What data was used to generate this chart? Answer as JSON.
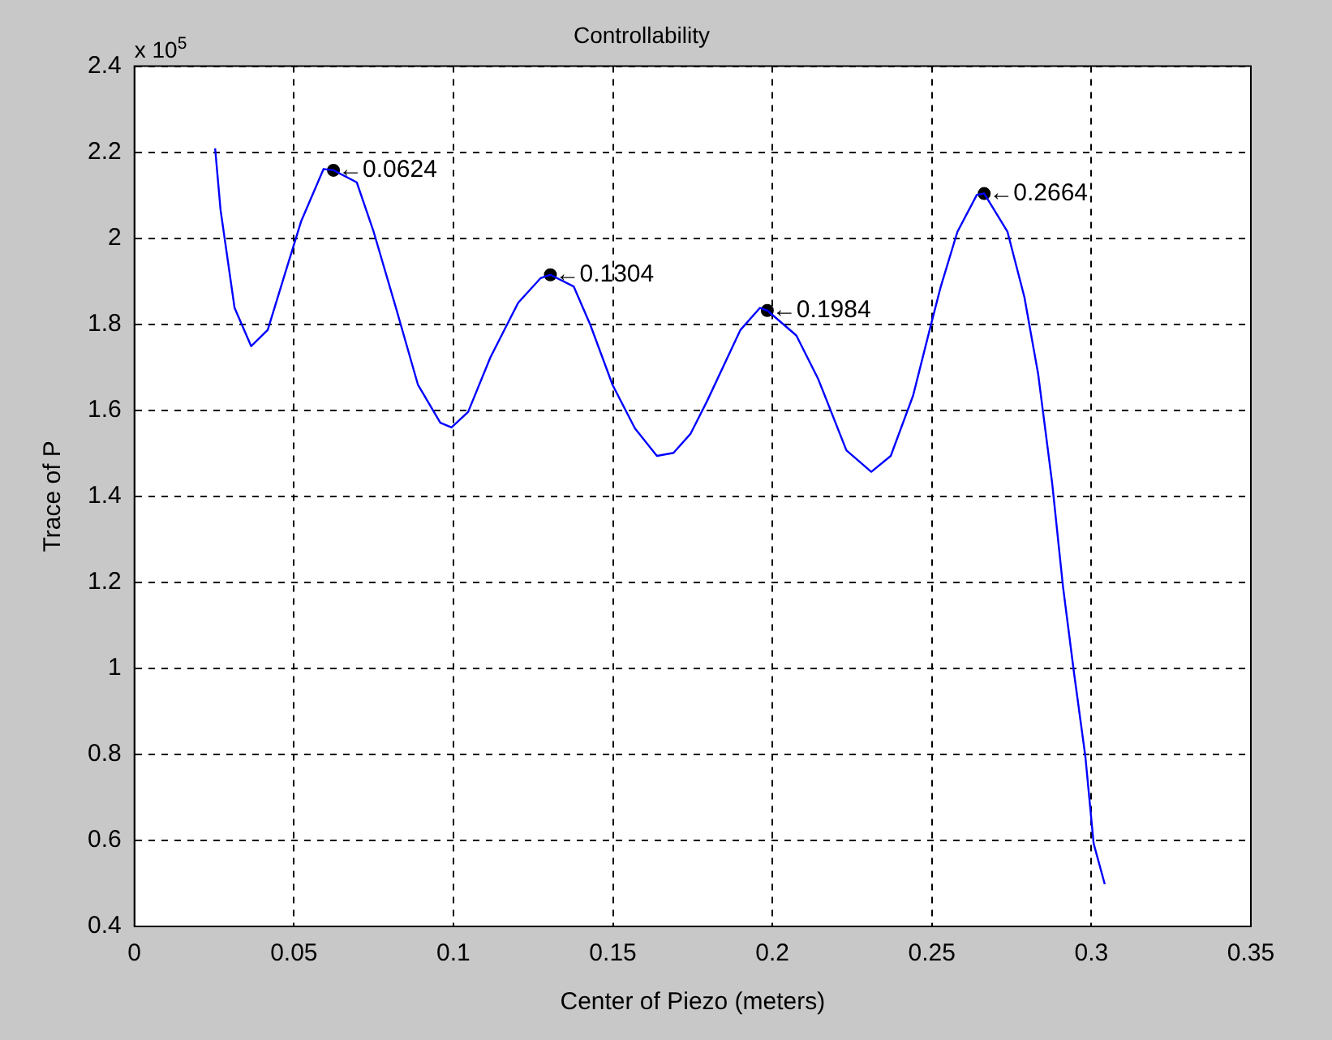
{
  "chart_data": {
    "type": "line",
    "title": "Controllability",
    "xlabel": "Center of Piezo (meters)",
    "ylabel": "Trace of P",
    "annotations": [
      "x 10$^{5}$",
      {
        "text": "←0.0624",
        "x": 0.0624,
        "y": 2.158
      },
      {
        "text": "←0.1304",
        "x": 0.1304,
        "y": 1.915
      },
      {
        "text": "←0.1984",
        "x": 0.1984,
        "y": 1.832
      },
      {
        "text": "←0.2664",
        "x": 0.2664,
        "y": 2.104
      }
    ],
    "series": [
      {
        "color": "#0000ff",
        "x": [
          0.0253,
          0.027,
          0.0314,
          0.0366,
          0.0418,
          0.047,
          0.0523,
          0.0593,
          0.0624,
          0.0697,
          0.075,
          0.082,
          0.0889,
          0.0959,
          0.0994,
          0.1046,
          0.1116,
          0.1203,
          0.1273,
          0.1304,
          0.1377,
          0.1429,
          0.1499,
          0.1569,
          0.1638,
          0.169,
          0.1743,
          0.1795,
          0.19,
          0.1961,
          0.1984,
          0.2075,
          0.2144,
          0.2232,
          0.231,
          0.2371,
          0.2441,
          0.2493,
          0.2528,
          0.258,
          0.2641,
          0.2664,
          0.2737,
          0.279,
          0.2833,
          0.2877,
          0.2911,
          0.2946,
          0.2981,
          0.3007,
          0.3042
        ],
        "values": [
          2.209,
          2.066,
          1.838,
          1.749,
          1.787,
          1.913,
          2.04,
          2.161,
          2.158,
          2.13,
          2.015,
          1.838,
          1.659,
          1.571,
          1.56,
          1.596,
          1.723,
          1.85,
          1.907,
          1.915,
          1.888,
          1.799,
          1.659,
          1.558,
          1.494,
          1.501,
          1.545,
          1.621,
          1.787,
          1.838,
          1.832,
          1.774,
          1.672,
          1.507,
          1.457,
          1.494,
          1.634,
          1.787,
          1.888,
          2.015,
          2.101,
          2.104,
          2.015,
          1.863,
          1.685,
          1.431,
          1.19,
          0.987,
          0.796,
          0.593,
          0.498
        ]
      },
      {
        "type": "scatter",
        "color": "#000000",
        "marker": "circle",
        "x": [
          0.0624,
          0.1304,
          0.1984,
          0.2664
        ],
        "values": [
          2.158,
          1.915,
          1.832,
          2.104
        ]
      }
    ],
    "xlim": [
      0,
      0.35
    ],
    "xticks": [
      0,
      0.05,
      0.1,
      0.15,
      0.2,
      0.25,
      0.3,
      0.35
    ],
    "ylim": [
      0.4,
      2.4
    ],
    "yticks": [
      0.4,
      0.6,
      0.8,
      1,
      1.2,
      1.4,
      1.6,
      1.8,
      2,
      2.2,
      2.4
    ],
    "grid": true,
    "legend": false,
    "line_style": "solid",
    "marker": "none"
  }
}
